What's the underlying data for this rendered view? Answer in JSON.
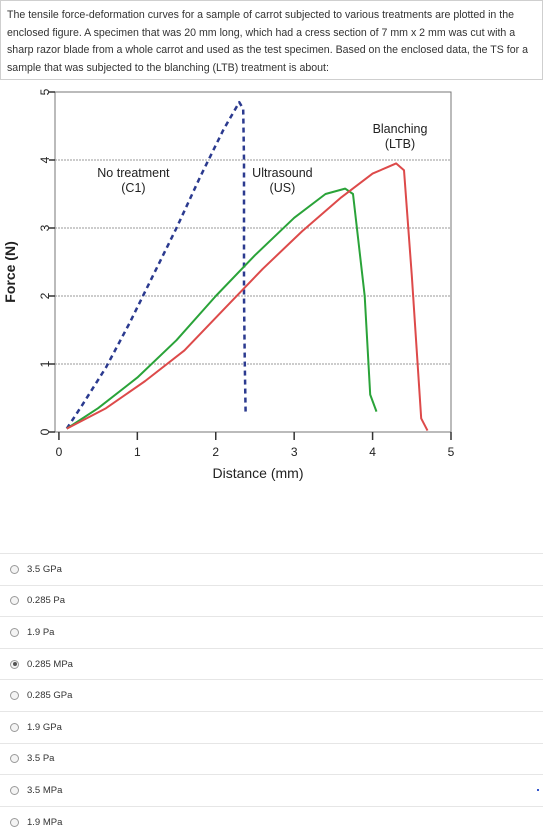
{
  "question": {
    "text": "The tensile force-deformation curves for a sample of carrot subjected to various treatments are plotted in the enclosed figure.  A specimen that was 20 mm long, which had a cress section of 7 mm x 2 mm was cut with a sharp razor blade from a whole carrot and used as the test specimen.  Based on the enclosed data, the TS for a sample that was subjected to the blanching (LTB) treatment is about:"
  },
  "options": [
    {
      "label": "3.5 GPa",
      "selected": false
    },
    {
      "label": "0.285 Pa",
      "selected": false
    },
    {
      "label": "1.9 Pa",
      "selected": false
    },
    {
      "label": "0.285 MPa",
      "selected": true
    },
    {
      "label": "0.285 GPa",
      "selected": false
    },
    {
      "label": "1.9 GPa",
      "selected": false
    },
    {
      "label": "3.5 Pa",
      "selected": false
    },
    {
      "label": "3.5 MPa",
      "selected": false
    },
    {
      "label": "1.9 MPa",
      "selected": false
    }
  ],
  "chart_data": {
    "type": "line",
    "xlabel": "Distance (mm)",
    "ylabel": "Force (N)",
    "xlim": [
      -0.05,
      5
    ],
    "ylim": [
      0,
      5
    ],
    "x_ticks": [
      0,
      1,
      2,
      3,
      4,
      5
    ],
    "y_ticks": [
      0,
      1,
      2,
      3,
      4,
      5
    ],
    "grid": "horizontal",
    "series": [
      {
        "name": "No treatment\n(C1)",
        "color": "#2b3a8f",
        "style": "dashed",
        "points": [
          [
            0.1,
            0.05
          ],
          [
            0.3,
            0.4
          ],
          [
            0.6,
            0.95
          ],
          [
            0.9,
            1.6
          ],
          [
            1.2,
            2.3
          ],
          [
            1.5,
            3.0
          ],
          [
            1.8,
            3.75
          ],
          [
            2.1,
            4.45
          ],
          [
            2.3,
            4.85
          ],
          [
            2.35,
            4.75
          ],
          [
            2.36,
            4.0
          ],
          [
            2.36,
            3.0
          ],
          [
            2.36,
            2.0
          ],
          [
            2.37,
            1.0
          ],
          [
            2.38,
            0.3
          ]
        ],
        "label_at": [
          0.95,
          3.75
        ]
      },
      {
        "name": "Ultrasound\n(US)",
        "color": "#2aa339",
        "style": "solid",
        "points": [
          [
            0.1,
            0.05
          ],
          [
            0.5,
            0.35
          ],
          [
            1.0,
            0.8
          ],
          [
            1.5,
            1.35
          ],
          [
            2.0,
            2.0
          ],
          [
            2.5,
            2.6
          ],
          [
            3.0,
            3.15
          ],
          [
            3.4,
            3.5
          ],
          [
            3.65,
            3.58
          ],
          [
            3.75,
            3.5
          ],
          [
            3.9,
            2.0
          ],
          [
            3.97,
            0.55
          ],
          [
            4.05,
            0.3
          ]
        ],
        "label_at": [
          2.85,
          3.75
        ]
      },
      {
        "name": "Blanching\n(LTB)",
        "color": "#dd4a4a",
        "style": "solid",
        "points": [
          [
            0.1,
            0.05
          ],
          [
            0.6,
            0.35
          ],
          [
            1.1,
            0.75
          ],
          [
            1.6,
            1.2
          ],
          [
            2.1,
            1.8
          ],
          [
            2.6,
            2.4
          ],
          [
            3.1,
            2.95
          ],
          [
            3.6,
            3.45
          ],
          [
            4.0,
            3.8
          ],
          [
            4.2,
            3.9
          ],
          [
            4.3,
            3.95
          ],
          [
            4.4,
            3.85
          ],
          [
            4.5,
            2.3
          ],
          [
            4.62,
            0.2
          ],
          [
            4.7,
            0.02
          ]
        ],
        "label_at": [
          4.35,
          4.4
        ]
      }
    ]
  }
}
